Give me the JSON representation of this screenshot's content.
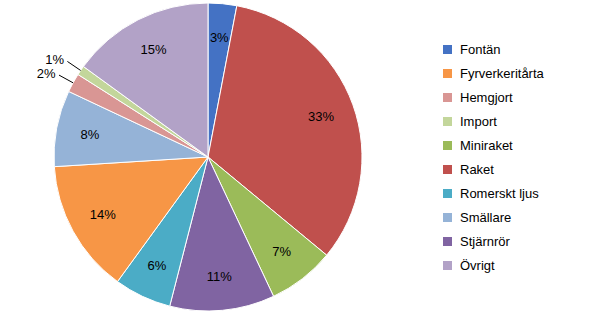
{
  "chart_data": {
    "type": "pie",
    "categories": [
      "Fontän",
      "Raket",
      "Miniraket",
      "Stjärnrör",
      "Romerskt ljus",
      "Fyrverkeritårta",
      "Smällare",
      "Hemgjort",
      "Import",
      "Övrigt"
    ],
    "values": [
      3,
      33,
      7,
      11,
      6,
      14,
      8,
      2,
      1,
      15
    ],
    "value_labels": [
      "3%",
      "33%",
      "7%",
      "11%",
      "6%",
      "14%",
      "8%",
      "2%",
      "1%",
      "15%"
    ],
    "colors": [
      "#4472c4",
      "#c0504d",
      "#9bbb59",
      "#8064a2",
      "#4bacc6",
      "#f79646",
      "#95b3d7",
      "#d99694",
      "#c3d69b",
      "#b2a2c7"
    ],
    "data_labels": true
  }
}
